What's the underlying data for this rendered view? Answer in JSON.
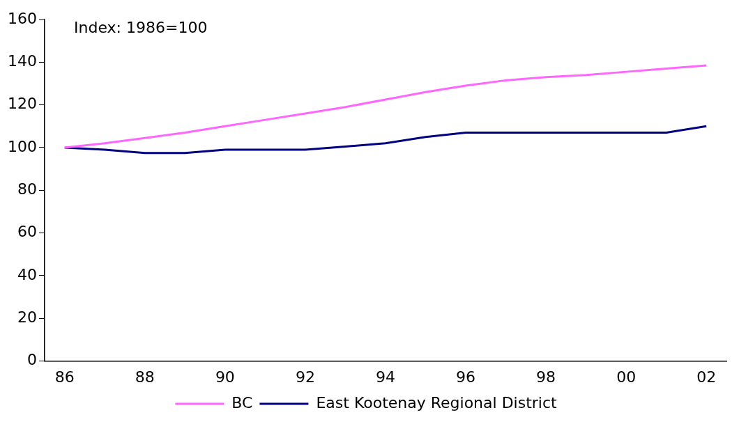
{
  "chart_data": {
    "type": "line",
    "annotations": [
      "Index: 1986=100"
    ],
    "categories": [
      "86",
      null,
      "88",
      null,
      "90",
      null,
      "92",
      null,
      "94",
      null,
      "96",
      null,
      "98",
      null,
      "00",
      null,
      "02"
    ],
    "series": [
      {
        "name": "BC",
        "color": "#ff66ff",
        "values": [
          100,
          102,
          104.5,
          107,
          110,
          113,
          116,
          119,
          122.5,
          126,
          129,
          131.5,
          133,
          134,
          135.5,
          137,
          138.5
        ]
      },
      {
        "name": "East Kootenay Regional District",
        "color": "#000080",
        "values": [
          100,
          99,
          97.5,
          97.5,
          99,
          99,
          99,
          100.5,
          102,
          105,
          107,
          107,
          107,
          107,
          107,
          107,
          110
        ]
      }
    ],
    "ylim": [
      0,
      160
    ],
    "yticks": [
      0,
      20,
      40,
      60,
      80,
      100,
      120,
      140,
      160
    ],
    "grid": false,
    "legend": "bottom",
    "marker": "none",
    "line_style": "solid"
  }
}
